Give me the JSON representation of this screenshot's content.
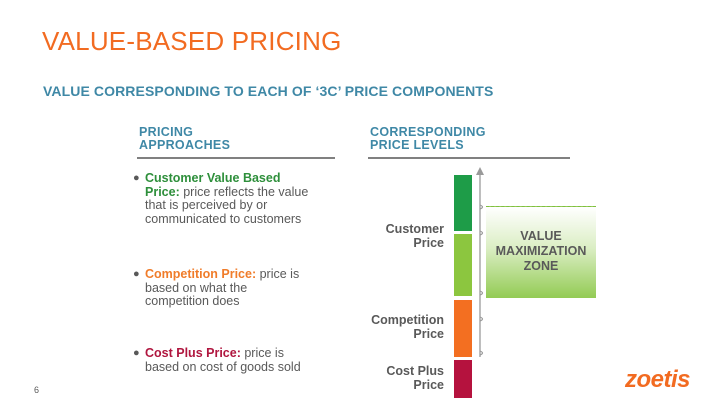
{
  "title": "VALUE-BASED PRICING",
  "subtitle": "VALUE CORRESPONDING TO EACH OF ‘3C’ PRICE COMPONENTS",
  "left_column": {
    "heading_line1": "PRICING",
    "heading_line2": "APPROACHES",
    "bullets": [
      {
        "term_line1": "Customer Value Based",
        "term_line2": "Price:",
        "desc_line2": " price reflects the value",
        "desc_line3": "that is perceived by or",
        "desc_line4": "communicated to customers",
        "color": "#2e8f3b"
      },
      {
        "term_line1": "Competition Price:",
        "desc_line1": " price is",
        "desc_line2": "based on what the",
        "desc_line3": "competition does",
        "color": "#f07c2a"
      },
      {
        "term_line1": "Cost Plus Price:",
        "desc_line1": " price is",
        "desc_line2": "based on cost of goods sold",
        "color": "#b0163f"
      }
    ]
  },
  "right_column": {
    "heading_line1": "CORRESPONDING",
    "heading_line2": "PRICE LEVELS",
    "levels": [
      {
        "line1": "Customer",
        "line2": "Price"
      },
      {
        "line1": "Competition",
        "line2": "Price"
      },
      {
        "line1": "Cost Plus",
        "line2": "Price"
      }
    ],
    "zone": {
      "line1": "VALUE",
      "line2": "MAXIMIZATION",
      "line3": "ZONE"
    }
  },
  "colors": {
    "accent_orange": "#f26b21",
    "subtitle_blue": "#3f88a6",
    "dark_green": "#1e9c48",
    "light_green": "#8cc63f",
    "orange": "#f36f21",
    "red": "#b5123e"
  },
  "footer": {
    "page_number": "6",
    "logo_text": "zoetis"
  }
}
